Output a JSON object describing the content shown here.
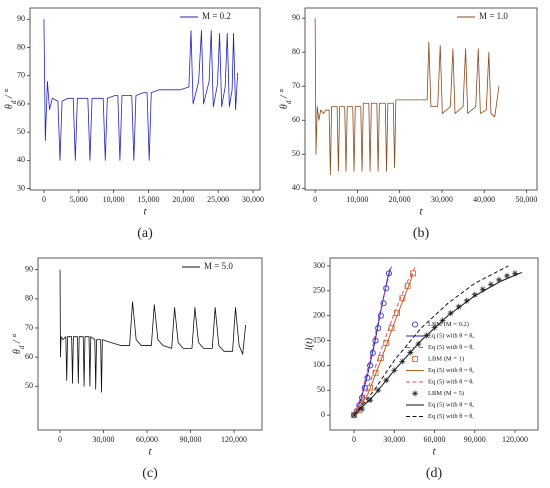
{
  "chart_data": [
    {
      "type": "line",
      "label": "(a)",
      "x_label": "t",
      "y_label": [
        "θ",
        "d",
        " / °"
      ],
      "xlim": [
        -2000,
        31000
      ],
      "ylim": [
        29.5,
        94
      ],
      "xticks": [
        0,
        {
          "value": 5000,
          "label": "5,000"
        },
        {
          "value": 10000,
          "label": "10,000"
        },
        {
          "value": 15000,
          "label": "15,000"
        },
        {
          "value": 20000,
          "label": "20,000"
        },
        {
          "value": 25000,
          "label": "25,000"
        },
        {
          "value": 30000,
          "label": "30,000"
        }
      ],
      "yticks": [
        30,
        40,
        50,
        60,
        70,
        80,
        90
      ],
      "legend": "upper right",
      "series": [
        {
          "name": "M = 0.2",
          "color": "#2424b8",
          "x": [
            0,
            200,
            500,
            800,
            1200,
            2000,
            2300,
            2600,
            3500,
            4200,
            4500,
            4800,
            5800,
            6300,
            6600,
            6900,
            8000,
            8500,
            8800,
            9100,
            10200,
            10600,
            10900,
            11200,
            12200,
            12600,
            12900,
            13200,
            14300,
            14800,
            15100,
            15400,
            16500,
            18000,
            19500,
            20800,
            21100,
            21400,
            22200,
            22600,
            22900,
            23700,
            24000,
            24300,
            24900,
            25200,
            25500,
            26000,
            26300,
            26600,
            27000,
            27200,
            27500,
            27800
          ],
          "values": [
            90,
            47,
            68,
            58,
            62,
            61,
            40,
            61,
            62,
            62,
            40,
            62,
            62,
            62,
            40,
            62,
            62,
            62,
            40,
            62,
            63,
            63,
            40,
            63,
            63,
            63,
            40,
            63,
            64,
            64,
            40,
            64,
            65,
            65,
            65,
            66,
            86,
            60,
            68,
            86,
            60,
            68,
            86,
            59,
            67,
            85,
            59,
            66,
            85,
            59,
            65,
            85,
            58,
            71
          ]
        }
      ]
    },
    {
      "type": "line",
      "label": "(b)",
      "x_label": "t",
      "y_label": [
        "θ",
        "d",
        " / °"
      ],
      "xlim": [
        -2400,
        52500
      ],
      "ylim": [
        39.5,
        93
      ],
      "xticks": [
        0,
        {
          "value": 10000,
          "label": "10,000"
        },
        {
          "value": 20000,
          "label": "20,000"
        },
        {
          "value": 30000,
          "label": "30,000"
        },
        {
          "value": 40000,
          "label": "40,000"
        },
        {
          "value": 50000,
          "label": "50,000"
        }
      ],
      "yticks": [
        40,
        50,
        60,
        70,
        80,
        90
      ],
      "legend": "upper right",
      "series": [
        {
          "name": "M = 1.0",
          "color": "#8b4a1e",
          "x": [
            0,
            200,
            500,
            900,
            1300,
            2000,
            2500,
            3300,
            3600,
            3900,
            5200,
            5500,
            5800,
            7000,
            7300,
            7600,
            8900,
            9200,
            9500,
            10800,
            11100,
            11400,
            12700,
            13000,
            13300,
            14600,
            14900,
            15200,
            16600,
            16900,
            17200,
            18500,
            18800,
            19100,
            22000,
            25000,
            26500,
            26900,
            27400,
            29000,
            29600,
            30100,
            32000,
            32600,
            33100,
            35000,
            35600,
            36100,
            38000,
            38600,
            39100,
            40500,
            41100,
            41600,
            42500,
            43500
          ],
          "values": [
            90,
            50,
            64,
            60,
            63,
            62,
            63,
            63,
            44,
            64,
            64,
            45,
            64,
            64,
            45,
            64,
            64,
            45,
            64,
            64,
            45,
            65,
            65,
            45,
            65,
            65,
            45,
            65,
            65,
            45,
            65,
            65,
            46,
            66,
            66,
            66,
            66,
            83,
            64,
            64,
            82,
            62,
            64,
            81,
            62,
            64,
            81,
            62,
            64,
            81,
            62,
            63,
            80,
            62,
            61,
            70
          ]
        }
      ]
    },
    {
      "type": "line",
      "label": "(c)",
      "x_label": "t",
      "y_label": [
        "θ",
        "d",
        " / °"
      ],
      "xlim": [
        -15200,
        139300
      ],
      "ylim": [
        35,
        94
      ],
      "xticks": [
        0,
        {
          "value": 30000,
          "label": "30,000"
        },
        {
          "value": 60000,
          "label": "60,000"
        },
        {
          "value": 90000,
          "label": "90,000"
        },
        {
          "value": 120000,
          "label": "120,000"
        }
      ],
      "yticks": [
        50,
        60,
        70,
        80,
        90
      ],
      "legend": "upper right",
      "series": [
        {
          "name": "M = 5.0",
          "color": "#111111",
          "x": [
            0,
            300,
            700,
            2000,
            4000,
            4600,
            5200,
            8000,
            8600,
            9200,
            12000,
            12600,
            13200,
            16000,
            16600,
            17200,
            20000,
            20600,
            21200,
            24000,
            24600,
            25200,
            28000,
            28600,
            29200,
            35000,
            42000,
            48000,
            50000,
            52500,
            56000,
            63000,
            65000,
            67500,
            71000,
            77000,
            79000,
            81500,
            85000,
            91000,
            93000,
            95500,
            99000,
            105000,
            107000,
            109500,
            113000,
            119000,
            121000,
            123500,
            126000,
            128000
          ],
          "values": [
            90,
            60,
            67,
            66,
            67,
            52,
            67,
            67,
            51,
            67,
            67,
            51,
            67,
            67,
            50,
            67,
            67,
            50,
            67,
            66,
            49,
            66,
            66,
            48,
            66,
            65,
            64,
            64,
            79,
            66,
            64,
            64,
            78,
            66,
            64,
            63,
            77,
            65,
            63,
            63,
            77,
            65,
            63,
            63,
            77,
            64,
            62,
            62,
            77,
            64,
            61,
            71
          ]
        }
      ]
    },
    {
      "type": "line",
      "label": "(d)",
      "x_label": "t",
      "y_label": [
        "l(t)"
      ],
      "xlim": [
        -17900,
        137100
      ],
      "ylim": [
        -30,
        316
      ],
      "xticks": [
        0,
        {
          "value": 30000,
          "label": "30,000"
        },
        {
          "value": 60000,
          "label": "60,000"
        },
        {
          "value": 90000,
          "label": "90,000"
        },
        {
          "value": 120000,
          "label": "120,000"
        }
      ],
      "yticks": [
        0,
        50,
        100,
        150,
        200,
        250,
        300
      ],
      "legend": "lower right",
      "series": [
        {
          "name": "LBM (M = 0.2)",
          "color": "#3a3ad0",
          "style": "marker",
          "marker": "circle",
          "x": [
            0,
            2000,
            4000,
            6000,
            8000,
            10000,
            12000,
            14000,
            16000,
            18000,
            20000,
            22000,
            24000,
            26000
          ],
          "values": [
            0,
            8,
            20,
            35,
            55,
            75,
            100,
            125,
            150,
            175,
            200,
            225,
            255,
            285
          ]
        },
        {
          "name": "Eq (5) with θ = θₐ",
          "color": "#2020c0",
          "style": "solid",
          "x": [
            0,
            5000,
            10000,
            15000,
            20000,
            25000,
            27000
          ],
          "values": [
            0,
            30,
            80,
            140,
            210,
            275,
            295
          ]
        },
        {
          "name": "Eq (5) with θ = θᵣ",
          "color": "#c03fa0",
          "style": "dashed",
          "x": [
            0,
            5000,
            10000,
            15000,
            20000,
            25000,
            28000
          ],
          "values": [
            0,
            35,
            90,
            150,
            215,
            270,
            300
          ]
        },
        {
          "name": "LBM (M = 1)",
          "color": "#d0703a",
          "style": "marker",
          "marker": "square",
          "x": [
            0,
            4000,
            8000,
            12000,
            16000,
            20000,
            24000,
            28000,
            32000,
            36000,
            40000,
            44000
          ],
          "values": [
            0,
            10,
            30,
            55,
            85,
            115,
            145,
            175,
            205,
            235,
            260,
            285
          ]
        },
        {
          "name": "Eq (5) with θ = θₐ",
          "color": "#c0602a",
          "style": "solid",
          "x": [
            0,
            10000,
            20000,
            30000,
            40000,
            44000
          ],
          "values": [
            0,
            40,
            110,
            185,
            255,
            285
          ]
        },
        {
          "name": "Eq (5) with θ = θᵣ",
          "color": "#e0506a",
          "style": "dashed",
          "x": [
            0,
            10000,
            20000,
            30000,
            40000,
            46000
          ],
          "values": [
            0,
            50,
            130,
            205,
            270,
            300
          ]
        },
        {
          "name": "LBM (M = 5)",
          "color": "#333333",
          "style": "marker",
          "marker": "plus",
          "x": [
            0,
            6000,
            12000,
            18000,
            24000,
            30000,
            36000,
            42000,
            48000,
            54000,
            60000,
            66000,
            72000,
            78000,
            84000,
            90000,
            96000,
            102000,
            108000,
            114000,
            120000
          ],
          "values": [
            0,
            12,
            30,
            50,
            70,
            90,
            108,
            126,
            143,
            160,
            176,
            190,
            205,
            218,
            230,
            242,
            253,
            263,
            272,
            280,
            285
          ]
        },
        {
          "name": "Eq (5) with θ = θₐ",
          "color": "#111111",
          "style": "solid",
          "x": [
            0,
            15000,
            30000,
            50000,
            70000,
            90000,
            110000,
            125000
          ],
          "values": [
            0,
            40,
            90,
            150,
            200,
            240,
            270,
            287
          ]
        },
        {
          "name": "Eq (5) with θ = θᵣ",
          "color": "#111111",
          "style": "dashed",
          "x": [
            0,
            15000,
            30000,
            50000,
            70000,
            90000,
            115000
          ],
          "values": [
            0,
            50,
            110,
            175,
            225,
            265,
            300
          ]
        }
      ]
    }
  ]
}
